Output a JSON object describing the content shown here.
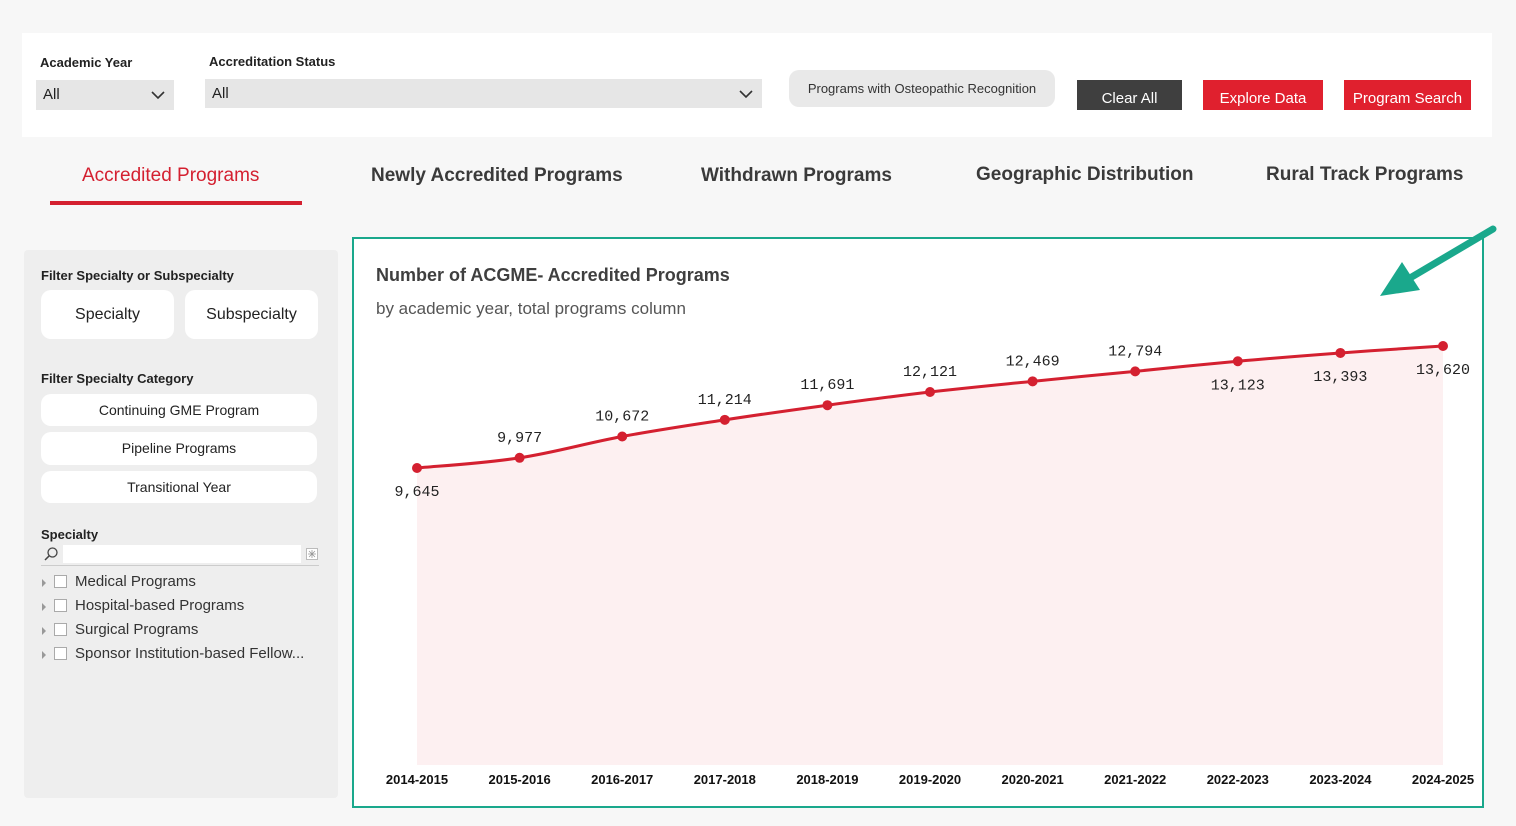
{
  "filters": {
    "academic_year": {
      "label": "Academic Year",
      "value": "All"
    },
    "accreditation_status": {
      "label": "Accreditation Status",
      "value": "All"
    },
    "osteopathic_button": "Programs with Osteopathic Recognition",
    "clear_all": "Clear All",
    "explore_data": "Explore Data",
    "program_search": "Program Search"
  },
  "tabs": [
    {
      "label": "Accredited Programs",
      "active": true
    },
    {
      "label": "Newly Accredited Programs",
      "active": false
    },
    {
      "label": "Withdrawn Programs",
      "active": false
    },
    {
      "label": "Geographic Distribution",
      "active": false
    },
    {
      "label": "Rural Track Programs",
      "active": false
    }
  ],
  "sidebar": {
    "filter_specialty_label": "Filter Specialty or Subspecialty",
    "specialty_button": "Specialty",
    "subspecialty_button": "Subspecialty",
    "filter_category_label": "Filter Specialty Category",
    "categories": [
      "Continuing GME Program",
      "Pipeline Programs",
      "Transitional Year"
    ],
    "specialty_label": "Specialty",
    "search_placeholder": "",
    "tree": [
      "Medical Programs",
      "Hospital-based Programs",
      "Surgical Programs",
      "Sponsor Institution-based Fellow..."
    ]
  },
  "colors": {
    "accent_red": "#d42030",
    "highlight_teal": "#1aa88c",
    "line": "#d42030",
    "area_fill": "#fdf0f1"
  },
  "icons": {
    "dropdown": "chevron-down-icon",
    "search": "search-icon",
    "erase": "erase-icon",
    "annotation": "arrow-annotation-icon"
  },
  "chart_data": {
    "type": "line",
    "title": "Number of ACGME- Accredited Programs",
    "subtitle": "by academic year, total programs column",
    "categories": [
      "2014-2015",
      "2015-2016",
      "2016-2017",
      "2017-2018",
      "2018-2019",
      "2019-2020",
      "2020-2021",
      "2021-2022",
      "2022-2023",
      "2023-2024",
      "2024-2025"
    ],
    "values": [
      9645,
      9977,
      10672,
      11214,
      11691,
      12121,
      12469,
      12794,
      13123,
      13393,
      13620
    ],
    "value_labels": [
      "9,645",
      "9,977",
      "10,672",
      "11,214",
      "11,691",
      "12,121",
      "12,469",
      "12,794",
      "13,123",
      "13,393",
      "13,620"
    ],
    "area_fill": true,
    "grid": false
  }
}
